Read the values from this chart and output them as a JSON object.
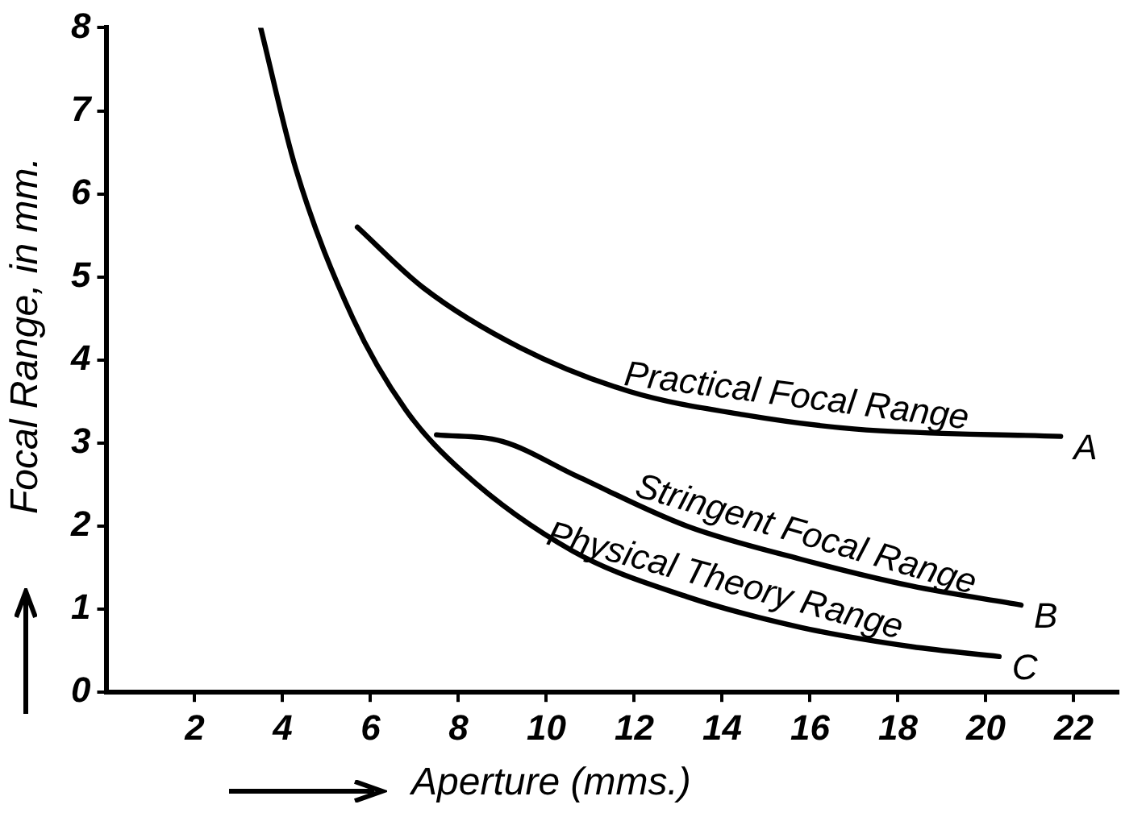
{
  "chart_data": {
    "type": "line",
    "xlabel": "Aperture (mms.)",
    "ylabel": "Focal Range, in mm.",
    "xlim": [
      0,
      23
    ],
    "xticks": [
      2,
      4,
      6,
      8,
      10,
      12,
      14,
      16,
      18,
      20,
      22
    ],
    "ylim": [
      0,
      8
    ],
    "yticks": [
      0,
      1,
      2,
      3,
      4,
      5,
      6,
      7,
      8
    ],
    "grid": false,
    "legend": false,
    "marker": "none",
    "line_style": "solid",
    "series": [
      {
        "name": "Practical Focal Range",
        "color": "#000000",
        "x": [
          5.7,
          7.2,
          9.4,
          11.9,
          14.5,
          17,
          21.7
        ],
        "values": [
          5.6,
          4.87,
          4.15,
          3.62,
          3.34,
          3.17,
          3.08
        ]
      },
      {
        "name": "Stringent Focal Range",
        "color": "#000000",
        "x": [
          7.5,
          9,
          10.7,
          13.2,
          15.8,
          18.3,
          20.8
        ],
        "values": [
          3.1,
          3.02,
          2.6,
          2.0,
          1.6,
          1.28,
          1.05
        ]
      },
      {
        "name": "Physical Theory Range",
        "color": "#000000",
        "x": [
          3.5,
          4.3,
          5.6,
          6.8,
          8.1,
          10.6,
          13.2,
          15.8,
          18.3,
          20.3
        ],
        "values": [
          8,
          6.3,
          4.5,
          3.4,
          2.65,
          1.7,
          1.15,
          0.78,
          0.55,
          0.43
        ]
      }
    ],
    "annotations": [
      {
        "text": "A",
        "x": 21.7,
        "y": 3.08
      },
      {
        "text": "B",
        "x": 20.8,
        "y": 1.05
      },
      {
        "text": "C",
        "x": 20.3,
        "y": 0.43
      }
    ]
  }
}
